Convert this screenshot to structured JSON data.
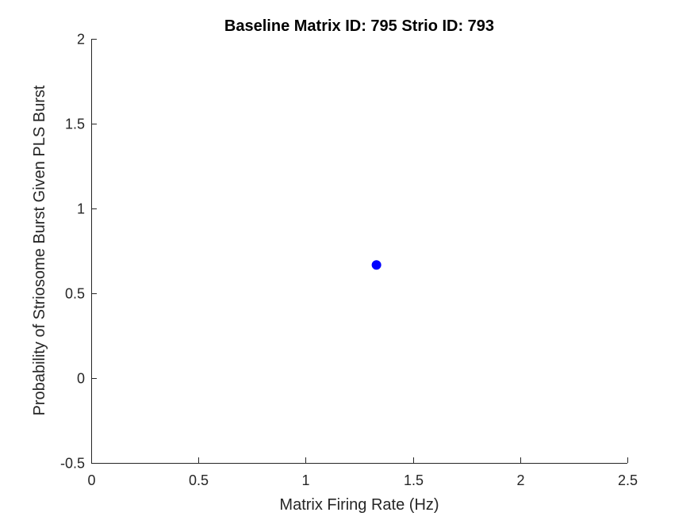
{
  "chart_data": {
    "type": "scatter",
    "title": "Baseline Matrix ID: 795 Strio ID: 793",
    "xlabel": "Matrix Firing Rate (Hz)",
    "ylabel": "Probability of Striosome Burst Given PLS Burst",
    "xlim": [
      0,
      2.5
    ],
    "ylim": [
      -0.5,
      2
    ],
    "xticks": [
      0,
      0.5,
      1,
      1.5,
      2,
      2.5
    ],
    "xtick_labels": [
      "0",
      "0.5",
      "1",
      "1.5",
      "2",
      "2.5"
    ],
    "yticks": [
      -0.5,
      0,
      0.5,
      1,
      1.5,
      2
    ],
    "ytick_labels": [
      "-0.5",
      "0",
      "0.5",
      "1",
      "1.5",
      "2"
    ],
    "grid": false,
    "legend": "none",
    "series": [
      {
        "color": "#0000ff",
        "points": [
          {
            "x": 1.33,
            "y": 0.667
          }
        ]
      }
    ]
  }
}
